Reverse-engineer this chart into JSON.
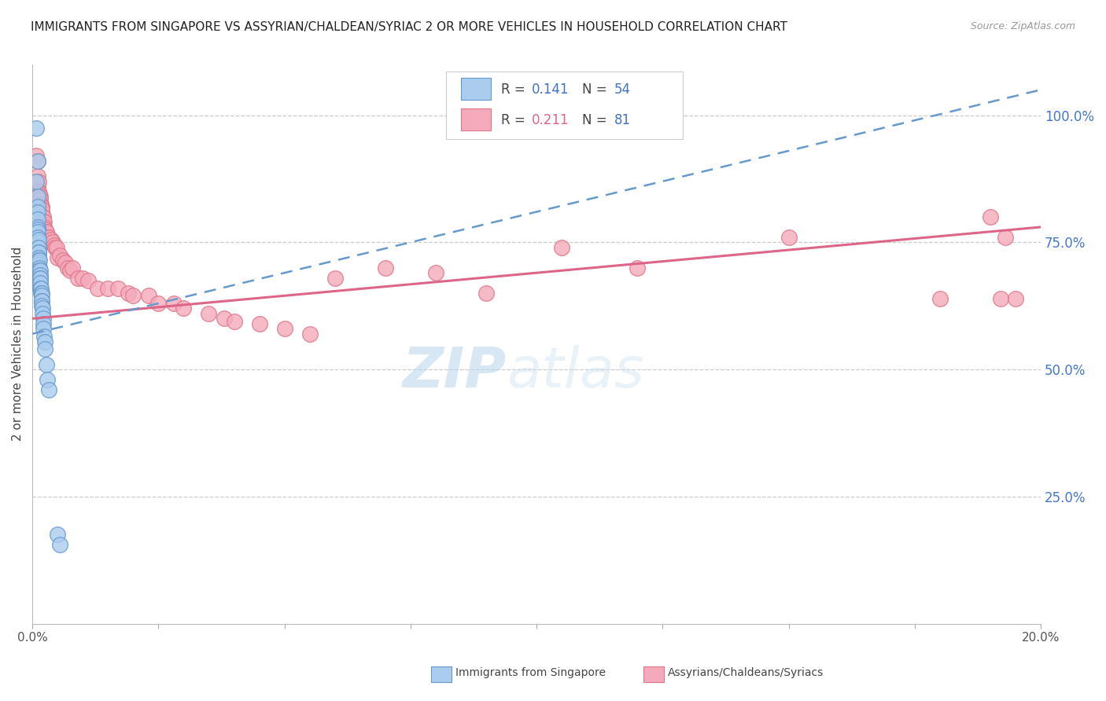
{
  "title": "IMMIGRANTS FROM SINGAPORE VS ASSYRIAN/CHALDEAN/SYRIAC 2 OR MORE VEHICLES IN HOUSEHOLD CORRELATION CHART",
  "source": "Source: ZipAtlas.com",
  "ylabel": "2 or more Vehicles in Household",
  "watermark": "ZIPAtlas",
  "series_blue": {
    "name": "Immigrants from Singapore",
    "R": 0.141,
    "N": 54,
    "color": "#AACCEE",
    "edge_color": "#6699CC",
    "trend_color": "#6699CC",
    "trend_style": "dashed",
    "trend_x0": 0.0,
    "trend_y0": 0.57,
    "trend_x1": 0.2,
    "trend_y1": 1.05,
    "x": [
      0.0008,
      0.0008,
      0.001,
      0.001,
      0.001,
      0.001,
      0.001,
      0.001,
      0.001,
      0.001,
      0.0011,
      0.0011,
      0.0011,
      0.0012,
      0.0012,
      0.0012,
      0.0012,
      0.0013,
      0.0013,
      0.0013,
      0.0013,
      0.0013,
      0.0014,
      0.0014,
      0.0014,
      0.0014,
      0.0015,
      0.0015,
      0.0015,
      0.0015,
      0.0015,
      0.0016,
      0.0016,
      0.0016,
      0.0017,
      0.0017,
      0.0018,
      0.0018,
      0.0018,
      0.0019,
      0.0019,
      0.002,
      0.002,
      0.0021,
      0.0021,
      0.0022,
      0.0023,
      0.0025,
      0.0025,
      0.0028,
      0.003,
      0.0032,
      0.005,
      0.0055
    ],
    "y": [
      0.975,
      0.87,
      0.91,
      0.84,
      0.82,
      0.81,
      0.795,
      0.78,
      0.775,
      0.77,
      0.76,
      0.75,
      0.74,
      0.755,
      0.74,
      0.73,
      0.72,
      0.73,
      0.72,
      0.715,
      0.71,
      0.705,
      0.715,
      0.7,
      0.695,
      0.685,
      0.695,
      0.685,
      0.68,
      0.67,
      0.66,
      0.68,
      0.67,
      0.66,
      0.66,
      0.65,
      0.65,
      0.645,
      0.635,
      0.635,
      0.625,
      0.62,
      0.61,
      0.6,
      0.59,
      0.58,
      0.565,
      0.555,
      0.54,
      0.51,
      0.48,
      0.46,
      0.175,
      0.155
    ]
  },
  "series_pink": {
    "name": "Assyrians/Chaldeans/Syriacs",
    "R": 0.211,
    "N": 81,
    "color": "#F5AABB",
    "edge_color": "#DD7788",
    "trend_color": "#DD6688",
    "trend_style": "solid",
    "trend_x0": 0.0,
    "trend_y0": 0.6,
    "trend_x1": 0.2,
    "trend_y1": 0.78,
    "x": [
      0.0008,
      0.0009,
      0.001,
      0.001,
      0.0011,
      0.0011,
      0.0012,
      0.0012,
      0.0013,
      0.0013,
      0.0013,
      0.0014,
      0.0014,
      0.0015,
      0.0015,
      0.0016,
      0.0016,
      0.0016,
      0.0017,
      0.0017,
      0.0018,
      0.0018,
      0.0018,
      0.0019,
      0.0019,
      0.002,
      0.002,
      0.0021,
      0.0021,
      0.0022,
      0.0022,
      0.0023,
      0.0023,
      0.0025,
      0.0026,
      0.0028,
      0.003,
      0.0033,
      0.0035,
      0.0038,
      0.004,
      0.0043,
      0.0045,
      0.0048,
      0.005,
      0.0055,
      0.006,
      0.0065,
      0.007,
      0.0075,
      0.008,
      0.009,
      0.01,
      0.011,
      0.013,
      0.015,
      0.017,
      0.019,
      0.02,
      0.023,
      0.025,
      0.028,
      0.03,
      0.035,
      0.038,
      0.04,
      0.045,
      0.05,
      0.055,
      0.06,
      0.07,
      0.08,
      0.09,
      0.105,
      0.12,
      0.15,
      0.18,
      0.19,
      0.192,
      0.193,
      0.195
    ],
    "y": [
      0.92,
      0.83,
      0.91,
      0.84,
      0.88,
      0.86,
      0.87,
      0.85,
      0.84,
      0.83,
      0.82,
      0.845,
      0.83,
      0.84,
      0.82,
      0.835,
      0.82,
      0.81,
      0.825,
      0.81,
      0.82,
      0.81,
      0.8,
      0.815,
      0.8,
      0.8,
      0.79,
      0.8,
      0.79,
      0.785,
      0.775,
      0.79,
      0.78,
      0.775,
      0.77,
      0.77,
      0.76,
      0.76,
      0.75,
      0.755,
      0.75,
      0.745,
      0.74,
      0.74,
      0.72,
      0.725,
      0.715,
      0.71,
      0.7,
      0.695,
      0.7,
      0.68,
      0.68,
      0.675,
      0.66,
      0.66,
      0.66,
      0.65,
      0.645,
      0.645,
      0.63,
      0.63,
      0.62,
      0.61,
      0.6,
      0.595,
      0.59,
      0.58,
      0.57,
      0.68,
      0.7,
      0.69,
      0.65,
      0.74,
      0.7,
      0.76,
      0.64,
      0.8,
      0.64,
      0.76,
      0.64
    ]
  },
  "xlim": [
    0.0,
    0.2
  ],
  "ylim": [
    0.0,
    1.1
  ],
  "right_yticks": [
    0.25,
    0.5,
    0.75,
    1.0
  ],
  "right_yticklabels": [
    "25.0%",
    "50.0%",
    "75.0%",
    "100.0%"
  ],
  "xtick_positions": [
    0.0,
    0.025,
    0.05,
    0.075,
    0.1,
    0.125,
    0.15,
    0.175,
    0.2
  ],
  "title_fontsize": 11,
  "source_fontsize": 9,
  "watermark_fontsize": 52,
  "watermark_color": "#C8DFF0",
  "watermark_alpha": 0.4,
  "scatter_size": 200
}
